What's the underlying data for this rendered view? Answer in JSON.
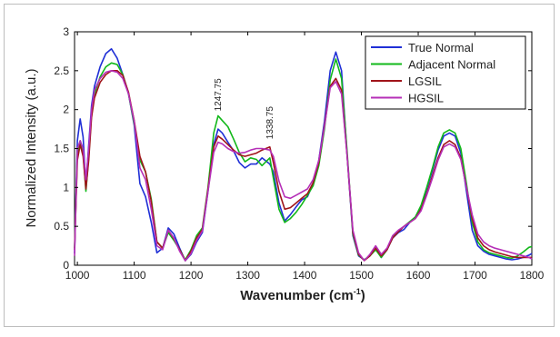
{
  "chart_data": {
    "type": "line",
    "title": "",
    "xlabel": "Wavenumber (cm",
    "xlabel_sup": "-1",
    "xlabel_close": ")",
    "ylabel": "Normalized Intensity (a.u.)",
    "xlim": [
      995,
      1800
    ],
    "ylim": [
      0,
      3
    ],
    "xticks": [
      1000,
      1100,
      1200,
      1300,
      1400,
      1500,
      1600,
      1700,
      1800
    ],
    "yticks": [
      0,
      0.5,
      1,
      1.5,
      2,
      2.5,
      3
    ],
    "ytick_labels": [
      "0",
      "0.5",
      "1",
      "1.5",
      "2",
      "2.5",
      "3"
    ],
    "grid": false,
    "legend_position": "top-right",
    "annotations": [
      {
        "text": "1247.75",
        "x": 1247.75,
        "y": 1.98
      },
      {
        "text": "1338.75",
        "x": 1338.75,
        "y": 1.62
      }
    ],
    "x": [
      995,
      1000,
      1005,
      1010,
      1015,
      1020,
      1025,
      1030,
      1040,
      1050,
      1060,
      1070,
      1080,
      1090,
      1100,
      1110,
      1120,
      1130,
      1140,
      1150,
      1160,
      1170,
      1180,
      1190,
      1200,
      1210,
      1220,
      1230,
      1240,
      1247.75,
      1255,
      1265,
      1275,
      1285,
      1295,
      1305,
      1315,
      1325,
      1338.75,
      1345,
      1355,
      1365,
      1375,
      1385,
      1395,
      1405,
      1415,
      1425,
      1435,
      1445,
      1455,
      1465,
      1475,
      1485,
      1495,
      1505,
      1515,
      1525,
      1535,
      1545,
      1555,
      1565,
      1575,
      1585,
      1595,
      1605,
      1615,
      1625,
      1635,
      1645,
      1655,
      1665,
      1675,
      1685,
      1695,
      1705,
      1715,
      1725,
      1735,
      1745,
      1755,
      1765,
      1775,
      1785,
      1795,
      1800
    ],
    "series": [
      {
        "name": "True Normal",
        "color": "#1f2fd6",
        "values": [
          0.15,
          1.6,
          1.88,
          1.65,
          1.02,
          1.55,
          2.05,
          2.3,
          2.55,
          2.72,
          2.78,
          2.66,
          2.45,
          2.2,
          1.8,
          1.05,
          0.88,
          0.55,
          0.16,
          0.22,
          0.48,
          0.4,
          0.22,
          0.06,
          0.14,
          0.3,
          0.42,
          0.95,
          1.55,
          1.75,
          1.7,
          1.58,
          1.47,
          1.32,
          1.25,
          1.3,
          1.3,
          1.38,
          1.3,
          1.2,
          0.8,
          0.57,
          0.65,
          0.75,
          0.84,
          0.88,
          1.05,
          1.35,
          1.85,
          2.5,
          2.74,
          2.5,
          1.4,
          0.38,
          0.12,
          0.07,
          0.12,
          0.22,
          0.1,
          0.2,
          0.35,
          0.42,
          0.46,
          0.55,
          0.62,
          0.75,
          0.98,
          1.22,
          1.48,
          1.66,
          1.7,
          1.66,
          1.44,
          0.95,
          0.45,
          0.25,
          0.18,
          0.14,
          0.12,
          0.1,
          0.08,
          0.07,
          0.08,
          0.1,
          0.13,
          0.15
        ]
      },
      {
        "name": "Adjacent Normal",
        "color": "#12b81a",
        "values": [
          0.22,
          1.45,
          1.6,
          1.45,
          0.95,
          1.4,
          1.95,
          2.2,
          2.42,
          2.55,
          2.6,
          2.58,
          2.45,
          2.2,
          1.82,
          1.35,
          1.2,
          0.85,
          0.3,
          0.22,
          0.42,
          0.32,
          0.2,
          0.07,
          0.2,
          0.38,
          0.48,
          1.0,
          1.7,
          1.92,
          1.86,
          1.78,
          1.62,
          1.45,
          1.33,
          1.38,
          1.36,
          1.28,
          1.38,
          1.12,
          0.72,
          0.55,
          0.6,
          0.68,
          0.78,
          0.9,
          1.02,
          1.28,
          1.75,
          2.38,
          2.65,
          2.4,
          1.45,
          0.4,
          0.13,
          0.07,
          0.12,
          0.2,
          0.1,
          0.2,
          0.36,
          0.44,
          0.5,
          0.56,
          0.62,
          0.77,
          1.0,
          1.25,
          1.52,
          1.7,
          1.74,
          1.7,
          1.5,
          1.05,
          0.55,
          0.3,
          0.2,
          0.16,
          0.14,
          0.12,
          0.1,
          0.09,
          0.12,
          0.17,
          0.23,
          0.24
        ]
      },
      {
        "name": "LGSIL",
        "color": "#a0141a",
        "values": [
          0.2,
          1.35,
          1.55,
          1.4,
          0.98,
          1.35,
          1.9,
          2.15,
          2.35,
          2.45,
          2.5,
          2.5,
          2.44,
          2.22,
          1.86,
          1.4,
          1.2,
          0.82,
          0.3,
          0.22,
          0.45,
          0.34,
          0.2,
          0.06,
          0.18,
          0.35,
          0.46,
          0.98,
          1.52,
          1.66,
          1.62,
          1.55,
          1.48,
          1.42,
          1.4,
          1.42,
          1.44,
          1.48,
          1.52,
          1.32,
          0.95,
          0.72,
          0.74,
          0.8,
          0.86,
          0.92,
          1.06,
          1.32,
          1.8,
          2.3,
          2.4,
          2.25,
          1.4,
          0.42,
          0.14,
          0.06,
          0.12,
          0.22,
          0.12,
          0.2,
          0.35,
          0.43,
          0.5,
          0.55,
          0.6,
          0.72,
          0.92,
          1.15,
          1.38,
          1.55,
          1.6,
          1.55,
          1.38,
          1.0,
          0.6,
          0.35,
          0.25,
          0.2,
          0.17,
          0.15,
          0.13,
          0.11,
          0.1,
          0.1,
          0.1,
          0.1
        ]
      },
      {
        "name": "HGSIL",
        "color": "#b52fb7",
        "values": [
          0.12,
          1.5,
          1.6,
          1.5,
          1.1,
          1.5,
          2.0,
          2.25,
          2.4,
          2.48,
          2.5,
          2.48,
          2.4,
          2.2,
          1.85,
          1.25,
          1.1,
          0.72,
          0.25,
          0.2,
          0.45,
          0.35,
          0.18,
          0.06,
          0.15,
          0.32,
          0.44,
          0.95,
          1.45,
          1.58,
          1.56,
          1.5,
          1.46,
          1.44,
          1.45,
          1.48,
          1.5,
          1.5,
          1.48,
          1.4,
          1.08,
          0.88,
          0.86,
          0.9,
          0.94,
          0.98,
          1.1,
          1.35,
          1.78,
          2.28,
          2.36,
          2.2,
          1.4,
          0.45,
          0.16,
          0.06,
          0.14,
          0.25,
          0.14,
          0.22,
          0.38,
          0.45,
          0.5,
          0.55,
          0.6,
          0.7,
          0.9,
          1.12,
          1.35,
          1.52,
          1.56,
          1.52,
          1.36,
          1.0,
          0.65,
          0.4,
          0.3,
          0.25,
          0.22,
          0.2,
          0.18,
          0.16,
          0.14,
          0.12,
          0.1,
          0.08
        ]
      }
    ]
  }
}
